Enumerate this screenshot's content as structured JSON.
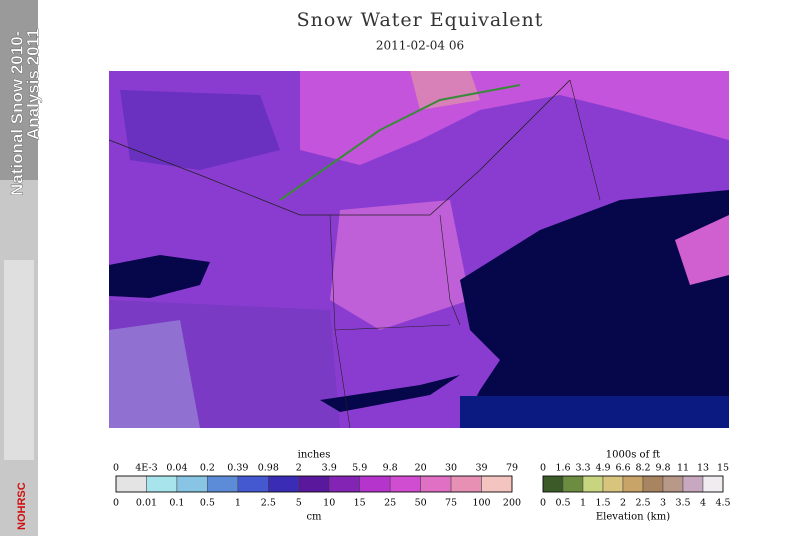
{
  "sidebar": {
    "lines": [
      "National Snow 2010-",
      "Analysis 2011"
    ],
    "logo": "NOHRSC"
  },
  "header": {
    "title": "Snow Water Equivalent",
    "subtitle": "2011-02-04 06"
  },
  "swe_legend": {
    "top_label": "inches",
    "top_ticks": [
      "0",
      "4E-3",
      "0.04",
      "0.2",
      "0.39",
      "0.98",
      "2",
      "3.9",
      "5.9",
      "9.8",
      "20",
      "30",
      "39",
      "79"
    ],
    "bottom_ticks": [
      "0",
      "0.01",
      "0.1",
      "0.5",
      "1",
      "2.5",
      "5",
      "10",
      "15",
      "25",
      "50",
      "75",
      "100",
      "200"
    ],
    "bottom_label": "cm",
    "colors": [
      "#e4e4e4",
      "#a8e4ec",
      "#88c4e4",
      "#5c8cd8",
      "#4458d0",
      "#3a2cb4",
      "#5a189c",
      "#8424b4",
      "#b434cc",
      "#d04cd0",
      "#e070c4",
      "#e890b4",
      "#f4c4c0"
    ]
  },
  "elevation_legend": {
    "top_label": "1000s of ft",
    "top_ticks": [
      "0",
      "1.6",
      "3.3",
      "4.9",
      "6.6",
      "8.2",
      "9.8",
      "11",
      "13",
      "15"
    ],
    "bottom_ticks": [
      "0",
      "0.5",
      "1",
      "1.5",
      "2",
      "2.5",
      "3",
      "3.5",
      "4",
      "4.5"
    ],
    "bottom_label": "Elevation (km)",
    "colors": [
      "#3c5a28",
      "#6c8c40",
      "#c8d480",
      "#d8c47c",
      "#c8a468",
      "#a88460",
      "#b89888",
      "#c8a8c0",
      "#f0ecf0"
    ]
  }
}
